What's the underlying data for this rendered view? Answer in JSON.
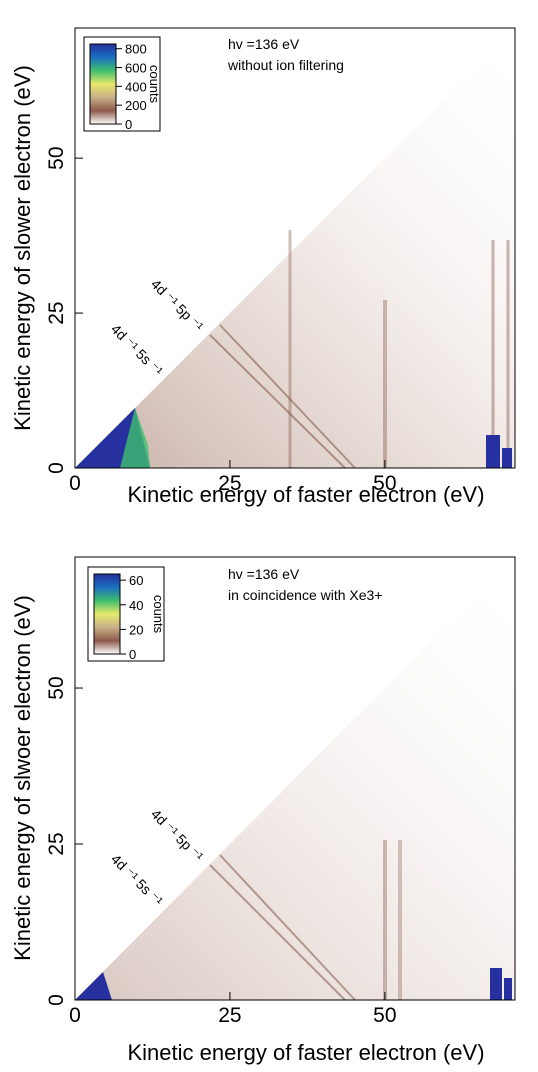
{
  "chart_data": [
    {
      "type": "heatmap",
      "x_label": "Kinetic energy of faster electron (eV)",
      "y_label": "Kinetic energy of slower electron (eV)",
      "xlim": [
        0,
        71
      ],
      "ylim": [
        0,
        71
      ],
      "xticks": [
        0,
        25,
        50
      ],
      "yticks": [
        0,
        25,
        50
      ],
      "annotations": [
        "hv =136 eV",
        "without ion filtering",
        "4d ⁻¹ 5p ⁻¹",
        "4d ⁻¹ 5s ⁻¹"
      ],
      "colorbar": {
        "label": "counts",
        "lim": [
          0,
          850
        ],
        "ticks": [
          0,
          200,
          400,
          600,
          800
        ],
        "colors": [
          "#ffffff",
          "#8c5a4a",
          "#c9b089",
          "#e6e86a",
          "#3fbf6f",
          "#1a6fc0",
          "#26309e"
        ]
      }
    },
    {
      "type": "heatmap",
      "x_label": "Kinetic energy of faster electron (eV)",
      "y_label": "Kinetic energy of slwoer electron (eV)",
      "xlim": [
        0,
        71
      ],
      "ylim": [
        0,
        71
      ],
      "xticks": [
        0,
        25,
        50
      ],
      "yticks": [
        0,
        25,
        50
      ],
      "annotations": [
        "hv =136 eV",
        "in coincidence with Xe3+",
        "4d ⁻¹ 5p ⁻¹",
        "4d ⁻¹ 5s ⁻¹"
      ],
      "colorbar": {
        "label": "counts",
        "lim": [
          0,
          65
        ],
        "ticks": [
          0,
          20,
          40,
          60
        ],
        "colors": [
          "#ffffff",
          "#8c5a4a",
          "#c9b089",
          "#e6e86a",
          "#3fbf6f",
          "#1a6fc0",
          "#26309e"
        ]
      }
    }
  ]
}
